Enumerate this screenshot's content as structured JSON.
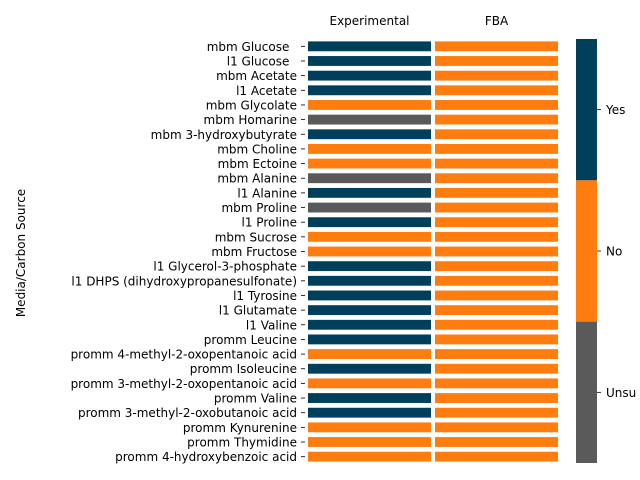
{
  "chart_data": {
    "type": "heatmap",
    "ylabel": "Media/Carbon Source",
    "columns": [
      "Experimental",
      "FBA"
    ],
    "rows": [
      "mbm Glucose  ",
      "l1 Glucose  ",
      "mbm Acetate",
      "l1 Acetate",
      "mbm Glycolate",
      "mbm Homarine",
      "mbm 3-hydroxybutyrate",
      "mbm Choline",
      "mbm Ectoine",
      "mbm Alanine",
      "l1 Alanine",
      "mbm Proline",
      "l1 Proline",
      "mbm Sucrose",
      "mbm Fructose",
      "l1 Glycerol-3-phosphate",
      "l1 DHPS (dihydroxypropanesulfonate)",
      "l1 Tyrosine",
      "l1 Glutamate",
      "l1 Valine",
      "promm Leucine",
      "promm 4-methyl-2-oxopentanoic acid",
      "promm Isoleucine",
      "promm 3-methyl-2-oxopentanoic acid",
      "promm Valine",
      "promm 3-methyl-2-oxobutanoic acid",
      "promm Kynurenine",
      "promm Thymidine",
      "promm 4-hydroxybenzoic acid"
    ],
    "values": {
      "Experimental": [
        "Yes",
        "Yes",
        "Yes",
        "Yes",
        "No",
        "Unsure",
        "Yes",
        "No",
        "No",
        "Unsure",
        "Yes",
        "Unsure",
        "Yes",
        "No",
        "No",
        "Yes",
        "Yes",
        "Yes",
        "Yes",
        "Yes",
        "Yes",
        "No",
        "Yes",
        "No",
        "Yes",
        "Yes",
        "No",
        "No",
        "No"
      ],
      "FBA": [
        "No",
        "No",
        "No",
        "No",
        "No",
        "No",
        "No",
        "No",
        "No",
        "No",
        "No",
        "No",
        "No",
        "No",
        "No",
        "No",
        "No",
        "No",
        "No",
        "No",
        "No",
        "No",
        "No",
        "No",
        "No",
        "No",
        "No",
        "No",
        "No"
      ]
    },
    "colorbar": {
      "categories": [
        "Yes",
        "No",
        "Unsure"
      ],
      "tick_labels": [
        "Yes",
        "No",
        "Unsu"
      ],
      "colors": {
        "Yes": "#003f5c",
        "No": "#ff7c0f",
        "Unsure": "#5a5a5a"
      }
    }
  }
}
